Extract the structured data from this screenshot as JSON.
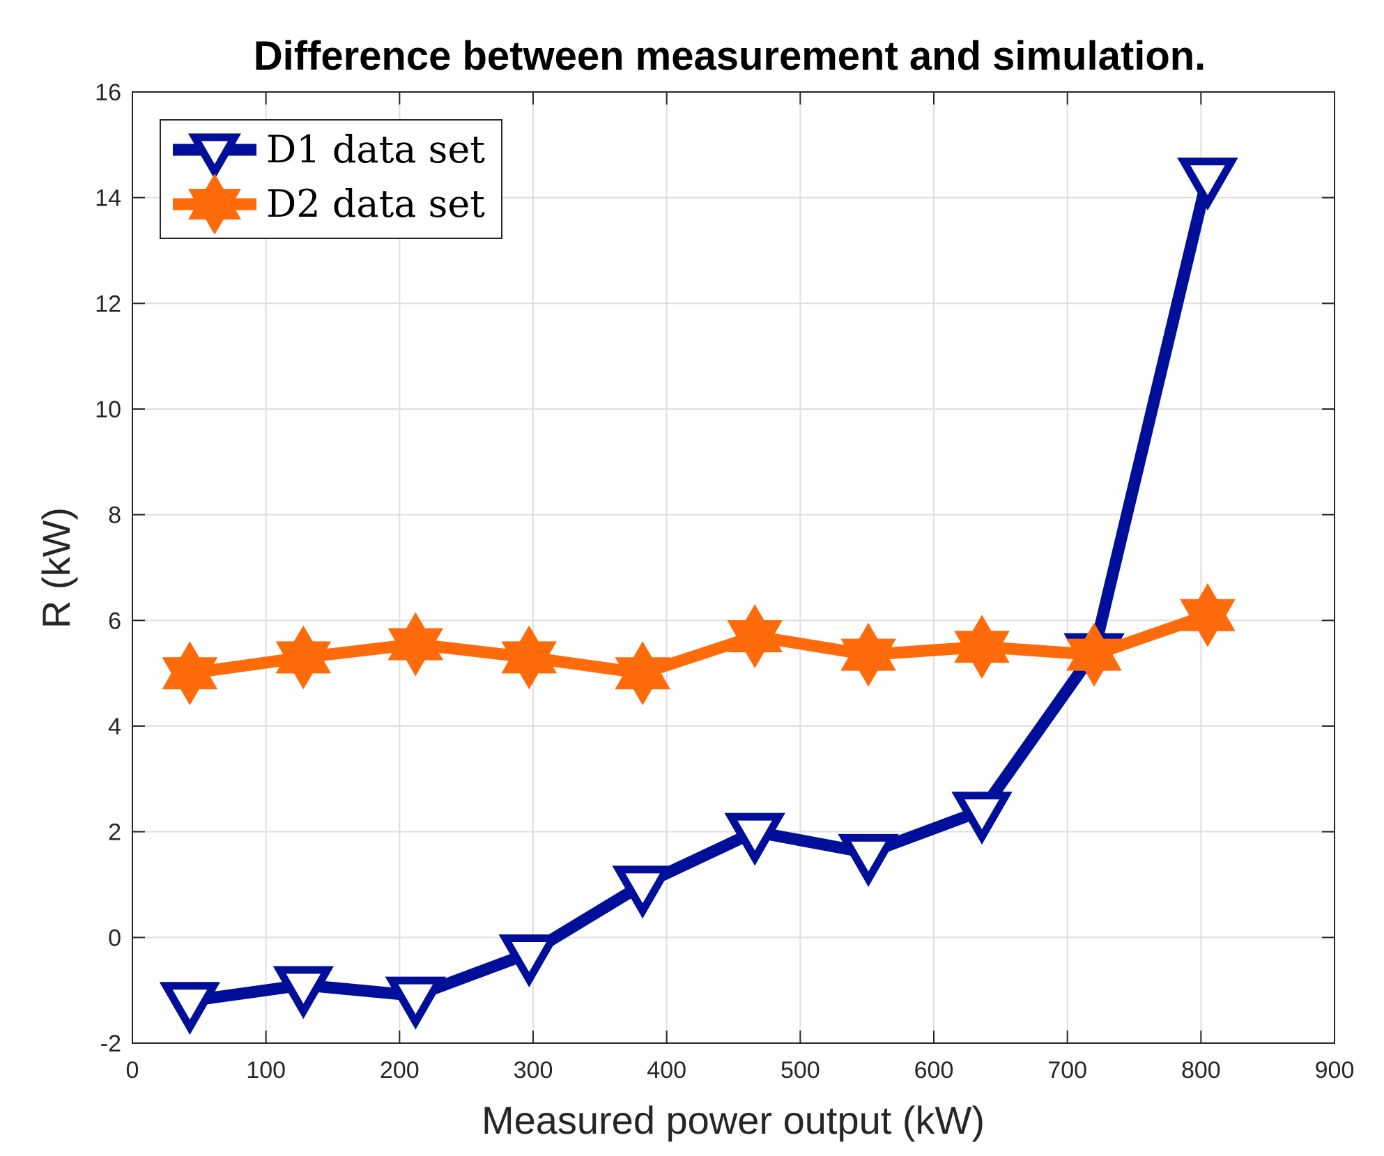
{
  "chart_data": {
    "type": "line",
    "title": "Difference between measurement and simulation.",
    "xlabel": "Measured power output (kW)",
    "ylabel": "R (kW)",
    "xlim": [
      0,
      900
    ],
    "ylim": [
      -2,
      16
    ],
    "xticks": [
      "0",
      "100",
      "200",
      "300",
      "400",
      "500",
      "600",
      "700",
      "800",
      "900"
    ],
    "yticks": [
      "-2",
      "0",
      "2",
      "4",
      "6",
      "8",
      "10",
      "12",
      "14",
      "16"
    ],
    "grid": true,
    "legend_position": "top-left",
    "series": [
      {
        "name": "D1 data set",
        "color": "#000f9a",
        "marker": "down-triangle",
        "x": [
          43,
          128,
          212,
          297,
          382,
          466,
          551,
          636,
          720,
          805
        ],
        "y": [
          -1.2,
          -0.9,
          -1.1,
          -0.3,
          1.0,
          2.0,
          1.6,
          2.4,
          5.4,
          14.4
        ]
      },
      {
        "name": "D2 data set",
        "color": "#ff6a0a",
        "marker": "hexagram",
        "x": [
          43,
          128,
          212,
          297,
          382,
          466,
          551,
          636,
          720,
          805
        ],
        "y": [
          5.0,
          5.3,
          5.55,
          5.3,
          5.0,
          5.7,
          5.35,
          5.5,
          5.35,
          6.1
        ]
      }
    ]
  }
}
